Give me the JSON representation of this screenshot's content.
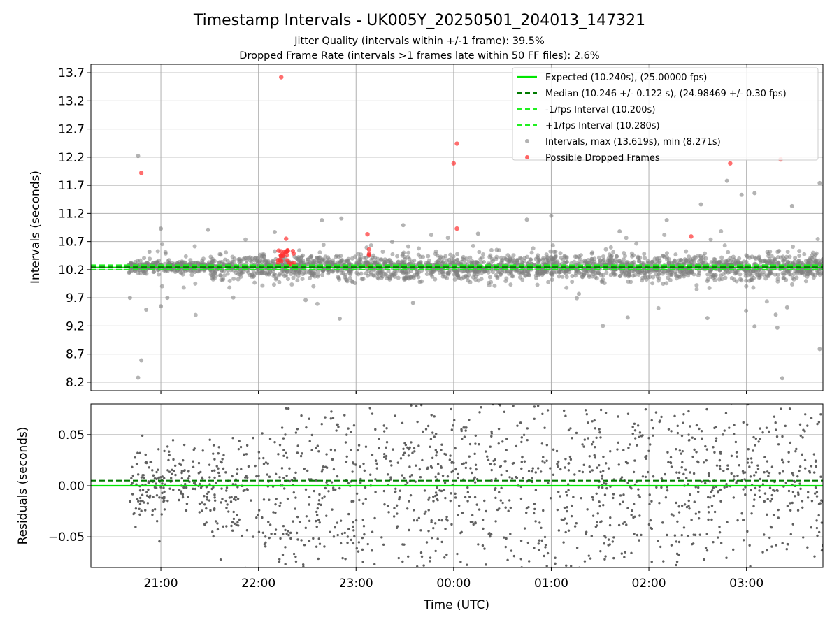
{
  "chart_data": [
    {
      "type": "scatter",
      "title": "Timestamp Intervals - UK005Y_20250501_204013_147321",
      "subtitle_lines": [
        "Jitter Quality (intervals within +/-1 frame): 39.5%",
        "Dropped Frame Rate (intervals >1 frames late within 50 FF files): 2.6%"
      ],
      "ylabel": "Intervals (seconds)",
      "x_ticks": [
        "21:00",
        "22:00",
        "23:00",
        "00:00",
        "01:00",
        "02:00",
        "03:00"
      ],
      "y_ticks": [
        "8.2",
        "8.7",
        "9.2",
        "9.7",
        "10.2",
        "10.7",
        "11.2",
        "11.7",
        "12.2",
        "12.7",
        "13.2",
        "13.7"
      ],
      "xlim": [
        "2025-05-01 20:17",
        "2025-05-02 03:47"
      ],
      "ylim": [
        8.05,
        13.85
      ],
      "grid": true,
      "legend_position": "top-right",
      "legend": [
        {
          "label": "Expected (10.240s), (25.00000 fps)",
          "kind": "solid-line",
          "color": "#00e600"
        },
        {
          "label": "Median (10.246 +/- 0.122 s), (24.98469 +/- 0.30 fps)",
          "kind": "dashed-line",
          "color": "#007a00"
        },
        {
          "label": "-1/fps Interval (10.200s)",
          "kind": "dashed-line",
          "color": "#20f020"
        },
        {
          "label": "+1/fps Interval (10.280s)",
          "kind": "dashed-line",
          "color": "#20f020"
        },
        {
          "label": "Intervals, max (13.619s), min (8.271s)",
          "kind": "marker",
          "color": "#808080"
        },
        {
          "label": "Possible Dropped Frames",
          "kind": "marker",
          "color": "#ff3030"
        }
      ],
      "lines": [
        {
          "name": "Expected",
          "y": 10.24,
          "style": "solid",
          "color": "#00e600"
        },
        {
          "name": "Median",
          "y": 10.246,
          "style": "dashed",
          "color": "#007a00"
        },
        {
          "name": "-1/fps Interval",
          "y": 10.2,
          "style": "dashed",
          "color": "#20f020"
        },
        {
          "name": "+1/fps Interval",
          "y": 10.28,
          "style": "dashed",
          "color": "#20f020"
        }
      ],
      "series": [
        {
          "name": "Intervals",
          "color": "#808080",
          "sample_points": [
            {
              "t": "20:46",
              "y": 12.22
            },
            {
              "t": "20:46",
              "y": 8.28
            },
            {
              "t": "20:48",
              "y": 8.59
            },
            {
              "t": "20:41",
              "y": 9.7
            },
            {
              "t": "20:51",
              "y": 9.49
            },
            {
              "t": "20:53",
              "y": 10.52
            },
            {
              "t": "21:00",
              "y": 10.93
            },
            {
              "t": "21:00",
              "y": 9.55
            },
            {
              "t": "21:04",
              "y": 9.7
            },
            {
              "t": "21:29",
              "y": 10.91
            },
            {
              "t": "22:10",
              "y": 10.87
            },
            {
              "t": "22:29",
              "y": 9.66
            },
            {
              "t": "22:39",
              "y": 11.08
            },
            {
              "t": "22:51",
              "y": 11.11
            },
            {
              "t": "22:50",
              "y": 9.33
            },
            {
              "t": "23:29",
              "y": 10.99
            },
            {
              "t": "23:35",
              "y": 9.61
            },
            {
              "t": "00:15",
              "y": 10.84
            },
            {
              "t": "00:45",
              "y": 11.09
            },
            {
              "t": "01:00",
              "y": 11.16
            },
            {
              "t": "01:17",
              "y": 9.77
            },
            {
              "t": "01:42",
              "y": 10.88
            },
            {
              "t": "01:47",
              "y": 9.35
            },
            {
              "t": "02:11",
              "y": 11.08
            },
            {
              "t": "02:32",
              "y": 11.36
            },
            {
              "t": "02:36",
              "y": 9.34
            },
            {
              "t": "02:57",
              "y": 11.53
            },
            {
              "t": "03:05",
              "y": 11.56
            },
            {
              "t": "03:05",
              "y": 9.19
            },
            {
              "t": "03:18",
              "y": 9.4
            },
            {
              "t": "03:19",
              "y": 9.17
            },
            {
              "t": "03:22",
              "y": 8.27
            },
            {
              "t": "03:28",
              "y": 11.33
            },
            {
              "t": "03:25",
              "y": 9.53
            },
            {
              "t": "03:45",
              "y": 11.74
            },
            {
              "t": "03:45",
              "y": 8.79
            },
            {
              "t": "02:48",
              "y": 11.78
            }
          ]
        },
        {
          "name": "Possible Dropped Frames",
          "color": "#ff3030",
          "points": [
            {
              "t": "20:48",
              "y": 11.92
            },
            {
              "t": "22:14",
              "y": 13.62
            },
            {
              "t": "22:17",
              "y": 10.75
            },
            {
              "t": "23:07",
              "y": 10.83
            },
            {
              "t": "23:08",
              "y": 10.56
            },
            {
              "t": "00:00",
              "y": 12.09
            },
            {
              "t": "00:02",
              "y": 12.44
            },
            {
              "t": "00:02",
              "y": 10.93
            },
            {
              "t": "02:26",
              "y": 10.79
            },
            {
              "t": "02:50",
              "y": 12.09
            },
            {
              "t": "03:21",
              "y": 12.16
            }
          ]
        }
      ]
    },
    {
      "type": "scatter",
      "ylabel": "Residuals (seconds)",
      "xlabel": "Time (UTC)",
      "x_ticks": [
        "21:00",
        "22:00",
        "23:00",
        "00:00",
        "01:00",
        "02:00",
        "03:00"
      ],
      "y_ticks": [
        "−0.05",
        "0.00",
        "0.05"
      ],
      "xlim": [
        "2025-05-01 20:17",
        "2025-05-02 03:47"
      ],
      "ylim": [
        -0.08,
        0.08
      ],
      "grid": true,
      "lines": [
        {
          "name": "Expected",
          "y": 0.0,
          "style": "solid",
          "color": "#00e600"
        },
        {
          "name": "Median",
          "y": 0.005,
          "style": "dashed",
          "color": "#007a00"
        }
      ],
      "series": [
        {
          "name": "Residuals",
          "color": "#606060",
          "x_range": [
            "20:40",
            "03:47"
          ],
          "y_range": [
            -0.08,
            0.08
          ]
        }
      ]
    }
  ]
}
